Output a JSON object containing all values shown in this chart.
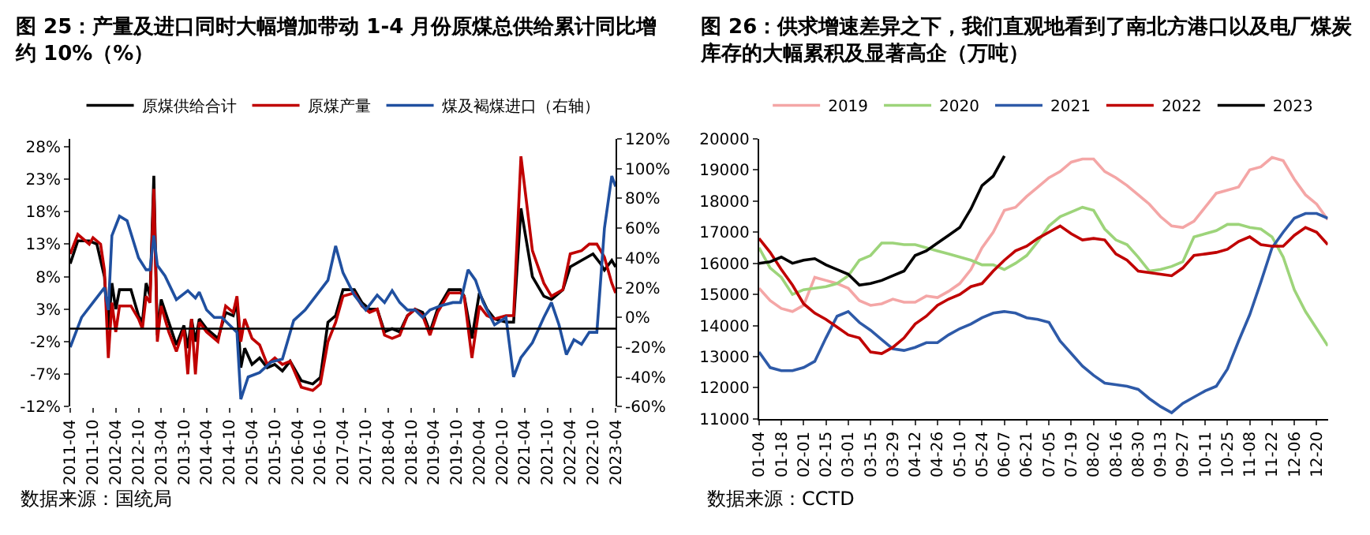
{
  "chart_data": [
    {
      "type": "line",
      "title": "图 25：产量及进口同时大幅增加带动 1-4 月份原煤总供给累计同比增约 10%（%）",
      "annotations": [
        "数据来源：国统局"
      ],
      "legend": "top",
      "series": [
        {
          "name": "原煤供给合计",
          "color": "#000000",
          "x": [
            "2011-04",
            "2011-06",
            "2011-09",
            "2011-11",
            "2012-01",
            "2012-02",
            "2012-03",
            "2012-04",
            "2012-05",
            "2012-08",
            "2012-10",
            "2012-11",
            "2012-12",
            "2013-01",
            "2013-02",
            "2013-03",
            "2013-04",
            "2013-06",
            "2013-08",
            "2013-10",
            "2013-11",
            "2013-12",
            "2014-01",
            "2014-02",
            "2014-04",
            "2014-07",
            "2014-09",
            "2014-11",
            "2014-12",
            "2015-01",
            "2015-02",
            "2015-04",
            "2015-06",
            "2015-08",
            "2015-10",
            "2015-12",
            "2016-02",
            "2016-05",
            "2016-08",
            "2016-10",
            "2016-12",
            "2017-02",
            "2017-04",
            "2017-07",
            "2017-09",
            "2017-11",
            "2018-01",
            "2018-03",
            "2018-05",
            "2018-07",
            "2018-09",
            "2018-11",
            "2019-01",
            "2019-03",
            "2019-05",
            "2019-08",
            "2019-11",
            "2019-12",
            "2020-02",
            "2020-04",
            "2020-06",
            "2020-08",
            "2020-11",
            "2021-01",
            "2021-03",
            "2021-06",
            "2021-09",
            "2021-11",
            "2022-02",
            "2022-04",
            "2022-07",
            "2022-10",
            "2022-12",
            "2023-01",
            "2023-03",
            "2023-04"
          ],
          "values": [
            10,
            13.5,
            13.5,
            13,
            8,
            0,
            7,
            3,
            6,
            6,
            2,
            1,
            7,
            5,
            23.5,
            -1,
            4.5,
            1,
            -2.5,
            0.5,
            -3,
            1.5,
            -2,
            1.5,
            0,
            -1.5,
            2.5,
            2,
            4,
            -6,
            -3,
            -5.5,
            -4.5,
            -6,
            -5.5,
            -6.5,
            -5,
            -8,
            -8.5,
            -7.5,
            1,
            2,
            6,
            6,
            4,
            3,
            3,
            -0.5,
            0,
            -0.5,
            2,
            3,
            2.5,
            -0.5,
            3,
            6,
            6,
            5,
            -1.5,
            5.5,
            3,
            1.5,
            1,
            1,
            18.5,
            8,
            5,
            4.5,
            6,
            9.5,
            10.5,
            11.5,
            10,
            9,
            10.5,
            9.5
          ]
        },
        {
          "name": "原煤产量",
          "color": "#c00000",
          "x": [
            "2011-04",
            "2011-06",
            "2011-09",
            "2011-10",
            "2011-12",
            "2012-01",
            "2012-02",
            "2012-03",
            "2012-04",
            "2012-05",
            "2012-08",
            "2012-10",
            "2012-11",
            "2012-12",
            "2013-01",
            "2013-02",
            "2013-03",
            "2013-04",
            "2013-06",
            "2013-08",
            "2013-10",
            "2013-11",
            "2013-12",
            "2014-01",
            "2014-02",
            "2014-04",
            "2014-07",
            "2014-09",
            "2014-11",
            "2014-12",
            "2015-01",
            "2015-02",
            "2015-04",
            "2015-06",
            "2015-08",
            "2015-10",
            "2015-12",
            "2016-02",
            "2016-05",
            "2016-08",
            "2016-10",
            "2016-12",
            "2017-02",
            "2017-04",
            "2017-07",
            "2017-09",
            "2017-11",
            "2018-01",
            "2018-03",
            "2018-05",
            "2018-07",
            "2018-09",
            "2018-11",
            "2019-01",
            "2019-03",
            "2019-05",
            "2019-08",
            "2019-11",
            "2019-12",
            "2020-02",
            "2020-04",
            "2020-06",
            "2020-08",
            "2020-11",
            "2021-01",
            "2021-03",
            "2021-06",
            "2021-09",
            "2021-11",
            "2022-02",
            "2022-04",
            "2022-07",
            "2022-09",
            "2022-11",
            "2023-01",
            "2023-03",
            "2023-04"
          ],
          "values": [
            11.5,
            14.5,
            13,
            14,
            13,
            9,
            -4.5,
            4,
            -0.5,
            3.5,
            3.5,
            1.5,
            0,
            5,
            4,
            21.5,
            -2,
            3.5,
            -0.5,
            -3.5,
            0,
            -7,
            1.5,
            -7,
            1,
            -0.5,
            -2,
            3.5,
            2.5,
            5,
            -2,
            1.5,
            -1.5,
            -2.5,
            -5.5,
            -4.5,
            -5.5,
            -5,
            -9,
            -9.5,
            -8.5,
            -2,
            1,
            5,
            5.5,
            3.5,
            2.5,
            3,
            -1,
            -1.5,
            -1,
            2,
            3,
            2,
            -1,
            2.5,
            5.5,
            5.5,
            5,
            -4.5,
            3.5,
            2,
            1.5,
            2,
            2,
            26.5,
            12,
            7,
            5,
            6,
            11.5,
            12,
            13,
            13,
            11,
            7,
            5.5
          ]
        },
        {
          "name": "煤及褐煤进口（右轴）",
          "color": "#2050a0",
          "axis": "y2",
          "x": [
            "2011-04",
            "2011-07",
            "2011-10",
            "2012-01",
            "2012-02",
            "2012-03",
            "2012-05",
            "2012-07",
            "2012-10",
            "2012-12",
            "2013-01",
            "2013-02",
            "2013-03",
            "2013-05",
            "2013-08",
            "2013-11",
            "2014-01",
            "2014-02",
            "2014-04",
            "2014-06",
            "2014-08",
            "2014-10",
            "2014-12",
            "2015-01",
            "2015-03",
            "2015-06",
            "2015-09",
            "2015-12",
            "2016-03",
            "2016-06",
            "2016-09",
            "2016-12",
            "2017-02",
            "2017-04",
            "2017-07",
            "2017-10",
            "2018-01",
            "2018-03",
            "2018-05",
            "2018-07",
            "2018-09",
            "2018-11",
            "2019-01",
            "2019-03",
            "2019-06",
            "2019-09",
            "2019-11",
            "2020-01",
            "2020-03",
            "2020-05",
            "2020-08",
            "2020-11",
            "2021-01",
            "2021-03",
            "2021-06",
            "2021-09",
            "2021-11",
            "2022-01",
            "2022-03",
            "2022-05",
            "2022-07",
            "2022-09",
            "2022-11",
            "2023-01",
            "2023-03",
            "2023-04"
          ],
          "values": [
            -20,
            0,
            10,
            20,
            5,
            55,
            68,
            65,
            40,
            32,
            32,
            55,
            35,
            28,
            12,
            18,
            13,
            17,
            5,
            0,
            0,
            -5,
            -10,
            -55,
            -40,
            -37,
            -30,
            -28,
            -2,
            5,
            15,
            25,
            48,
            30,
            15,
            5,
            15,
            10,
            18,
            10,
            5,
            5,
            0,
            5,
            8,
            10,
            10,
            32,
            25,
            10,
            -5,
            0,
            -40,
            -27,
            -17,
            0,
            10,
            -5,
            -25,
            -15,
            -18,
            -10,
            -10,
            60,
            95,
            88
          ]
        }
      ],
      "xlim": [
        "2011-04",
        "2023-04"
      ],
      "xticks": [
        "2011-04",
        "2011-10",
        "2012-04",
        "2012-10",
        "2013-04",
        "2013-10",
        "2014-04",
        "2014-10",
        "2015-04",
        "2015-10",
        "2016-04",
        "2016-10",
        "2017-04",
        "2017-10",
        "2018-04",
        "2018-10",
        "2019-04",
        "2019-10",
        "2020-04",
        "2020-10",
        "2021-04",
        "2021-10",
        "2022-04",
        "2022-10",
        "2023-04"
      ],
      "ylim": [
        -12,
        29.2
      ],
      "yticks": [
        {
          "value": -12,
          "label": "-12%"
        },
        {
          "value": -7,
          "label": "-7%"
        },
        {
          "value": -2,
          "label": "-2%"
        },
        {
          "value": 3,
          "label": "3%"
        },
        {
          "value": 8,
          "label": "8%"
        },
        {
          "value": 13,
          "label": "13%"
        },
        {
          "value": 18,
          "label": "18%"
        },
        {
          "value": 23,
          "label": "23%"
        },
        {
          "value": 28,
          "label": "28%"
        }
      ],
      "y2lim": [
        -60,
        120
      ],
      "y2ticks": [
        {
          "value": -60,
          "label": "-60%"
        },
        {
          "value": -40,
          "label": "-40%"
        },
        {
          "value": -20,
          "label": "-20%"
        },
        {
          "value": 0,
          "label": "0%"
        },
        {
          "value": 20,
          "label": "20%"
        },
        {
          "value": 40,
          "label": "40%"
        },
        {
          "value": 60,
          "label": "60%"
        },
        {
          "value": 80,
          "label": "80%"
        },
        {
          "value": 100,
          "label": "100%"
        },
        {
          "value": 120,
          "label": "120%"
        }
      ],
      "ref_lines": [
        {
          "axis": "y",
          "value": 0,
          "color": "#000000"
        }
      ]
    },
    {
      "type": "line",
      "title": "图 26：供求增速差异之下，我们直观地看到了南北方港口以及电厂煤炭库存的大幅累积及显著高企（万吨）",
      "annotations": [
        "数据来源：CCTD"
      ],
      "legend": "top",
      "categories": [
        "01-04",
        null,
        "01-18",
        null,
        "02-01",
        null,
        "02-15",
        null,
        "03-01",
        null,
        "03-15",
        null,
        "03-29",
        null,
        "04-12",
        null,
        "04-26",
        null,
        "05-10",
        null,
        "05-24",
        null,
        "06-07",
        null,
        "06-21",
        null,
        "07-05",
        null,
        "07-19",
        null,
        "08-02",
        null,
        "08-16",
        null,
        "08-30",
        null,
        "09-13",
        null,
        "09-27",
        null,
        "10-11",
        null,
        "10-25",
        null,
        "11-08",
        null,
        "11-22",
        null,
        "12-06",
        null,
        "12-20",
        null
      ],
      "series": [
        {
          "name": "2019",
          "color": "#f4a6a6",
          "values": [
            15200,
            14800,
            14550,
            14450,
            14650,
            15550,
            15450,
            15350,
            15200,
            14800,
            14650,
            14700,
            14850,
            14750,
            14750,
            14950,
            14900,
            15100,
            15350,
            15800,
            16500,
            17000,
            17700,
            17800,
            18150,
            18450,
            18750,
            18950,
            19250,
            19350,
            19350,
            18950,
            18750,
            18500,
            18200,
            17900,
            17500,
            17200,
            17150,
            17350,
            17800,
            18250,
            18350,
            18450,
            19000,
            19100,
            19400,
            19300,
            18700,
            18200,
            17900,
            17400
          ]
        },
        {
          "name": "2020",
          "color": "#9dd47a",
          "values": [
            16500,
            15850,
            15550,
            15000,
            15150,
            15200,
            15250,
            15350,
            15600,
            16100,
            16250,
            16650,
            16650,
            16600,
            16600,
            16500,
            16400,
            16300,
            16200,
            16100,
            15950,
            15950,
            15800,
            16000,
            16250,
            16700,
            17200,
            17500,
            17650,
            17800,
            17700,
            17100,
            16750,
            16600,
            16200,
            15750,
            15800,
            15900,
            16050,
            16850,
            16950,
            17050,
            17250,
            17250,
            17150,
            17100,
            16850,
            16200,
            15150,
            14450,
            13900,
            13350
          ]
        },
        {
          "name": "2021",
          "color": "#2e5aa8",
          "values": [
            13150,
            12650,
            12550,
            12550,
            12650,
            12850,
            13600,
            14300,
            14450,
            14100,
            13850,
            13550,
            13250,
            13200,
            13300,
            13450,
            13450,
            13700,
            13900,
            14050,
            14250,
            14400,
            14450,
            14400,
            14250,
            14200,
            14100,
            13500,
            13100,
            12700,
            12400,
            12150,
            12100,
            12050,
            11950,
            11650,
            11400,
            11200,
            11500,
            11700,
            11900,
            12050,
            12600,
            13500,
            14350,
            15400,
            16500,
            17000,
            17450,
            17600,
            17600,
            17450
          ]
        },
        {
          "name": "2022",
          "color": "#c00000",
          "values": [
            16800,
            16350,
            15800,
            15300,
            14700,
            14400,
            14200,
            13950,
            13700,
            13600,
            13150,
            13100,
            13300,
            13600,
            14050,
            14300,
            14650,
            14850,
            15000,
            15250,
            15350,
            15750,
            16100,
            16400,
            16550,
            16800,
            17000,
            17200,
            16950,
            16750,
            16800,
            16750,
            16300,
            16100,
            15750,
            15700,
            15650,
            15600,
            15850,
            16250,
            16300,
            16350,
            16450,
            16700,
            16850,
            16600,
            16550,
            16550,
            16900,
            17150,
            17000,
            16600
          ]
        },
        {
          "name": "2023",
          "color": "#000000",
          "values": [
            16000,
            16050,
            16200,
            16000,
            16100,
            16150,
            15950,
            15800,
            15650,
            15300,
            15350,
            15450,
            15600,
            15750,
            16250,
            16400,
            16650,
            16900,
            17150,
            17750,
            18500,
            18800,
            19450,
            null,
            null,
            null,
            null,
            null,
            null,
            null,
            null,
            null,
            null,
            null,
            null,
            null,
            null,
            null,
            null,
            null,
            null,
            null,
            null,
            null,
            null,
            null,
            null,
            null,
            null,
            null,
            null,
            null
          ]
        }
      ],
      "ylim": [
        11000,
        20000
      ],
      "yticks": [
        11000,
        12000,
        13000,
        14000,
        15000,
        16000,
        17000,
        18000,
        19000,
        20000
      ]
    }
  ]
}
